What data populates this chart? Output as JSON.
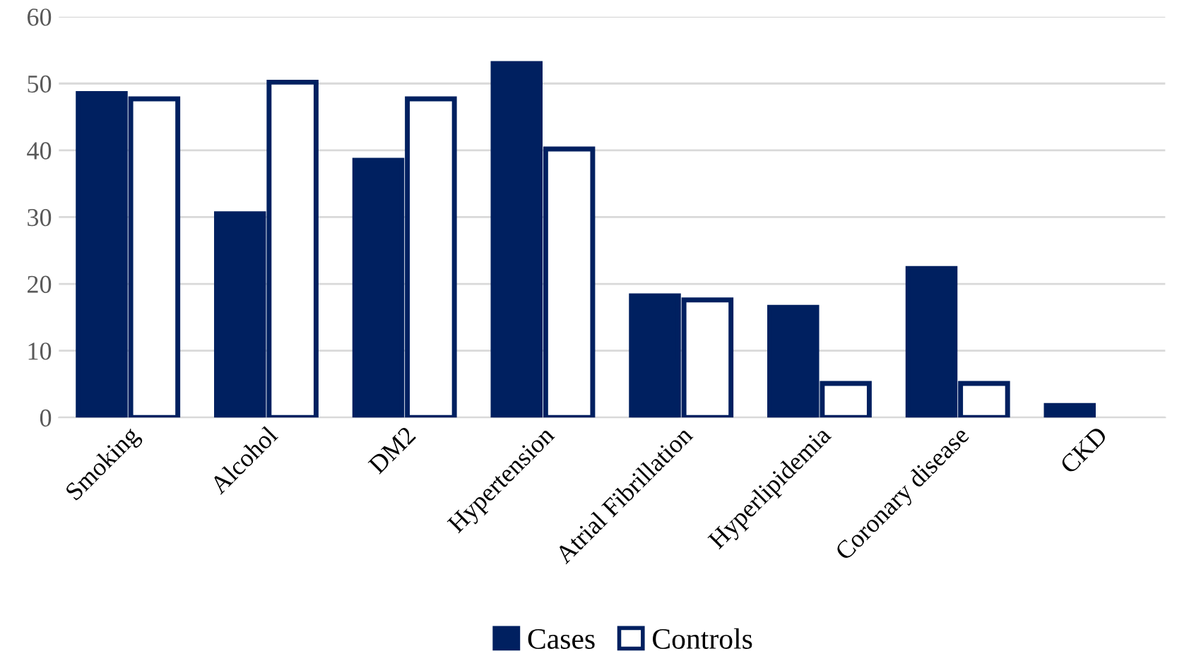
{
  "chart_data": {
    "type": "bar",
    "categories": [
      "Smoking",
      "Alcohol",
      "DM2",
      "Hypertension",
      "Atrial Fibrillation",
      "Hyperlipidemia",
      "Coronary disease",
      "CKD"
    ],
    "series": [
      {
        "name": "Cases",
        "color": "#002060",
        "values": [
          48.5,
          30.5,
          38.5,
          53,
          18.2,
          16.5,
          22.3,
          1.8
        ]
      },
      {
        "name": "Controls",
        "color": "#ffffff",
        "values": [
          47.7,
          50.2,
          47.7,
          40.2,
          17.6,
          5.1,
          5.1,
          null
        ]
      }
    ],
    "ylim": [
      0,
      60
    ],
    "yticks": [
      0,
      10,
      20,
      30,
      40,
      50,
      60
    ],
    "grid": "y",
    "legend": "bottom"
  }
}
